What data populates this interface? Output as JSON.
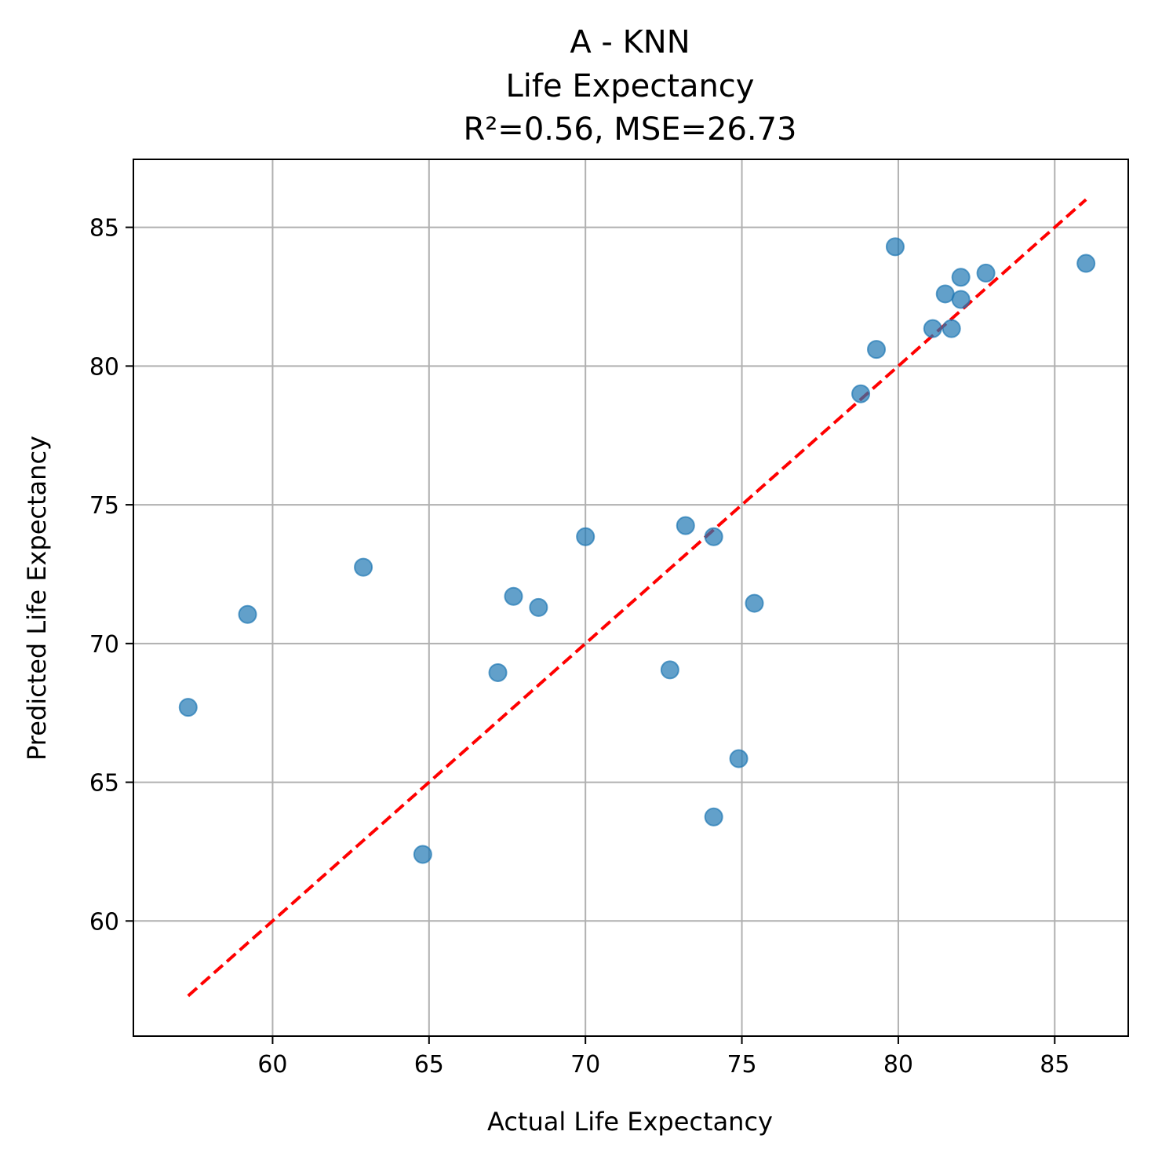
{
  "chart_data": {
    "type": "scatter",
    "title_lines": [
      "A - KNN",
      "Life Expectancy",
      "R²=0.56, MSE=26.73"
    ],
    "xlabel": "Actual Life Expectancy",
    "ylabel": "Predicted Life Expectancy",
    "xlim": [
      55.55,
      87.35
    ],
    "ylim": [
      55.85,
      87.45
    ],
    "xticks": [
      60,
      65,
      70,
      75,
      80,
      85
    ],
    "yticks": [
      60,
      65,
      70,
      75,
      80,
      85
    ],
    "grid": true,
    "legend": "none",
    "marker_color": "#1f77b4",
    "marker_alpha": 0.7,
    "reference_line": {
      "from": [
        57.3,
        57.3
      ],
      "to": [
        86.0,
        86.0
      ],
      "color": "#ff0000",
      "style": "dashed"
    },
    "points": [
      {
        "x": 57.3,
        "y": 67.7
      },
      {
        "x": 59.2,
        "y": 71.05
      },
      {
        "x": 62.9,
        "y": 72.75
      },
      {
        "x": 64.8,
        "y": 62.4
      },
      {
        "x": 67.2,
        "y": 68.95
      },
      {
        "x": 67.7,
        "y": 71.7
      },
      {
        "x": 68.5,
        "y": 71.3
      },
      {
        "x": 70.0,
        "y": 73.85
      },
      {
        "x": 72.7,
        "y": 69.05
      },
      {
        "x": 73.2,
        "y": 74.25
      },
      {
        "x": 74.1,
        "y": 73.85
      },
      {
        "x": 74.1,
        "y": 63.75
      },
      {
        "x": 74.9,
        "y": 65.85
      },
      {
        "x": 75.4,
        "y": 71.45
      },
      {
        "x": 78.8,
        "y": 79.0
      },
      {
        "x": 79.3,
        "y": 80.6
      },
      {
        "x": 79.9,
        "y": 84.3
      },
      {
        "x": 81.1,
        "y": 81.35
      },
      {
        "x": 81.5,
        "y": 82.6
      },
      {
        "x": 81.7,
        "y": 81.35
      },
      {
        "x": 82.0,
        "y": 82.4
      },
      {
        "x": 82.0,
        "y": 83.2
      },
      {
        "x": 82.8,
        "y": 83.35
      },
      {
        "x": 86.0,
        "y": 83.7
      }
    ]
  }
}
